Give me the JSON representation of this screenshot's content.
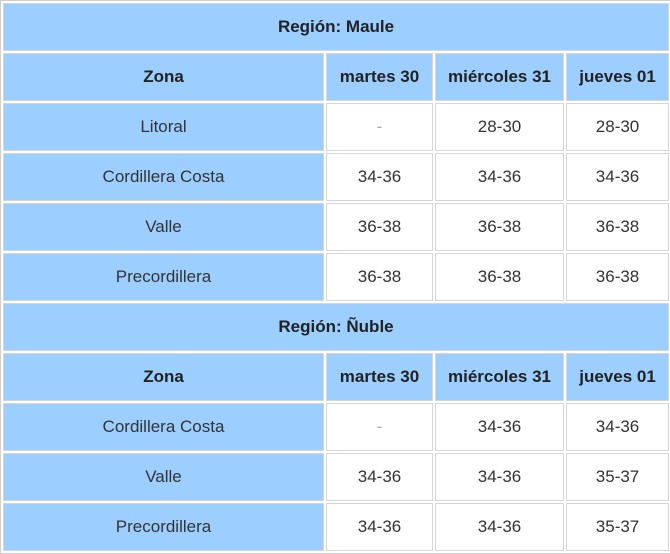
{
  "sections": [
    {
      "title": "Región: Maule",
      "header": [
        "Zona",
        "martes 30",
        "miércoles 31",
        "jueves 01"
      ],
      "rows": [
        [
          "Litoral",
          "-",
          "28-30",
          "28-30"
        ],
        [
          "Cordillera Costa",
          "34-36",
          "34-36",
          "34-36"
        ],
        [
          "Valle",
          "36-38",
          "36-38",
          "36-38"
        ],
        [
          "Precordillera",
          "36-38",
          "36-38",
          "36-38"
        ]
      ]
    },
    {
      "title": "Región: Ñuble",
      "header": [
        "Zona",
        "martes 30",
        "miércoles 31",
        "jueves 01"
      ],
      "rows": [
        [
          "Cordillera Costa",
          "-",
          "34-36",
          "34-36"
        ],
        [
          "Valle",
          "34-36",
          "34-36",
          "35-37"
        ],
        [
          "Precordillera",
          "34-36",
          "34-36",
          "35-37"
        ]
      ]
    }
  ]
}
